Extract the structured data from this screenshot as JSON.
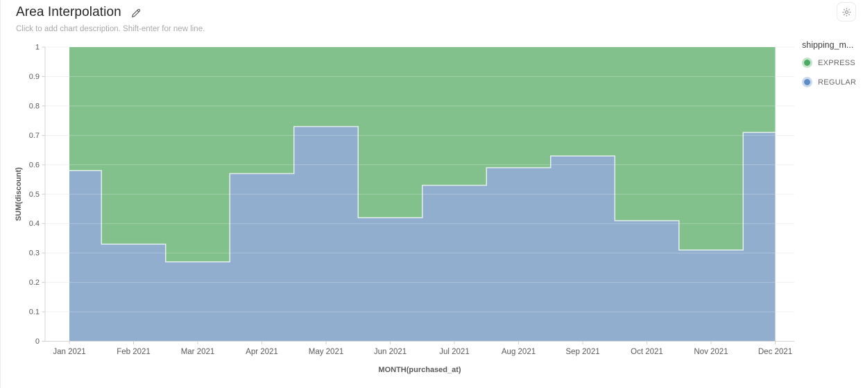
{
  "header": {
    "title": "Area Interpolation",
    "subtitle": "Click to add chart description. Shift-enter for new line."
  },
  "icons": {
    "edit": "pencil-icon",
    "settings": "gear-icon"
  },
  "legend": {
    "title": "shipping_m...",
    "items": [
      {
        "label": "EXPRESS",
        "color": "#4CAA64",
        "halo": "rgba(76,170,100,0.32)"
      },
      {
        "label": "REGULAR",
        "color": "#5D8DC4",
        "halo": "rgba(93,141,196,0.32)"
      }
    ]
  },
  "chart_data": {
    "type": "area",
    "variant": "step-middle interpolation, normalized stack (shares sum to 1)",
    "title": "Area Interpolation",
    "xlabel": "MONTH(purchased_at)",
    "ylabel": "SUM(discount)",
    "categories": [
      "Jan 2021",
      "Feb 2021",
      "Mar 2021",
      "Apr 2021",
      "May 2021",
      "Jun 2021",
      "Jul 2021",
      "Aug 2021",
      "Sep 2021",
      "Oct 2021",
      "Nov 2021",
      "Dec 2021"
    ],
    "series": [
      {
        "name": "EXPRESS",
        "stack_order": "top",
        "fill": "#82C08C",
        "values": [
          0.42,
          0.67,
          0.73,
          0.43,
          0.27,
          0.58,
          0.47,
          0.41,
          0.37,
          0.59,
          0.69,
          0.29
        ]
      },
      {
        "name": "REGULAR",
        "stack_order": "bottom",
        "fill": "#91AECF",
        "values": [
          0.58,
          0.33,
          0.27,
          0.57,
          0.73,
          0.42,
          0.53,
          0.59,
          0.63,
          0.41,
          0.31,
          0.71
        ]
      }
    ],
    "ylim": [
      0,
      1
    ],
    "y_ticks": [
      "0",
      "0.1",
      "0.2",
      "0.3",
      "0.4",
      "0.5",
      "0.6",
      "0.7",
      "0.8",
      "0.9",
      "1"
    ],
    "grid": "horizontal",
    "legend_position": "right",
    "colors": {
      "axis_line": "#d4d4d4",
      "tick_mark": "#cccccc",
      "grid_line": "#f0f0f0",
      "grid_overlay": "rgba(255,255,255,0.25)",
      "axis_text": "#595959",
      "boundary_line": "rgba(255,255,255,0.75)"
    }
  }
}
